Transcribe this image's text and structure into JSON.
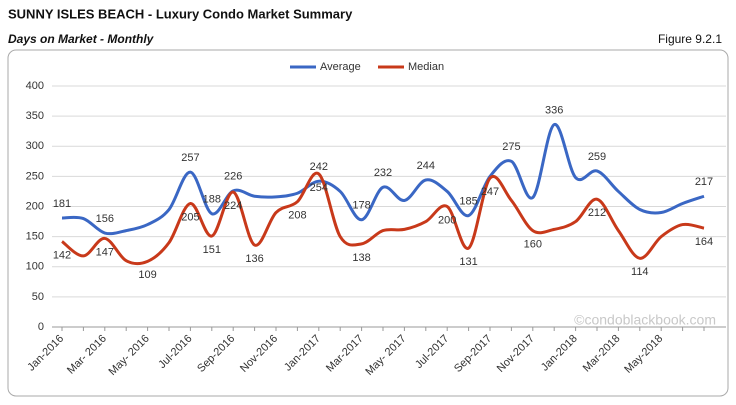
{
  "header": {
    "title": "SUNNY ISLES BEACH - Luxury Condo Market Summary",
    "subtitle": "Days on Market - Monthly",
    "figure": "Figure 9.2.1"
  },
  "watermark": "©condoblackbook.com",
  "chart_data": {
    "type": "line",
    "categories": [
      "Jan-2016",
      null,
      "Mar- 2016",
      null,
      "May- 2016",
      null,
      "Jul-2016",
      null,
      "Sep-2016",
      null,
      "Nov-2016",
      null,
      "Jan-2017",
      null,
      "Mar-2017",
      null,
      "May- 2017",
      null,
      "Jul-2017",
      null,
      "Sep-2017",
      null,
      "Nov-2017",
      null,
      "Jan-2018",
      null,
      "Mar-2018",
      null,
      "May-2018",
      null,
      null
    ],
    "series": [
      {
        "name": "Average",
        "color": "#3a67c4",
        "values": [
          181,
          180,
          156,
          160,
          170,
          195,
          257,
          188,
          226,
          217,
          216,
          222,
          242,
          225,
          178,
          232,
          210,
          244,
          225,
          185,
          250,
          275,
          215,
          336,
          248,
          259,
          225,
          195,
          190,
          205,
          217
        ],
        "value_labels": [
          "181",
          null,
          "156",
          null,
          null,
          null,
          "257",
          "188",
          "226",
          null,
          null,
          null,
          "242",
          null,
          "178",
          "232",
          null,
          "244",
          null,
          "185",
          null,
          "275",
          null,
          "336",
          null,
          "259",
          null,
          null,
          null,
          null,
          "217"
        ]
      },
      {
        "name": "Median",
        "color": "#c8391a",
        "values": [
          142,
          118,
          147,
          110,
          109,
          140,
          205,
          151,
          224,
          136,
          190,
          208,
          254,
          150,
          138,
          160,
          162,
          175,
          200,
          131,
          247,
          210,
          160,
          162,
          175,
          212,
          160,
          114,
          150,
          170,
          164
        ],
        "value_labels": [
          "142",
          null,
          "147",
          null,
          "109",
          null,
          "205",
          "151",
          "224",
          "136",
          null,
          "208",
          "254",
          null,
          "138",
          null,
          null,
          null,
          "200",
          "131",
          "247",
          null,
          "160",
          null,
          null,
          "212",
          null,
          "114",
          null,
          null,
          "164"
        ]
      }
    ],
    "ylim": [
      0,
      400
    ],
    "yticks": [
      0,
      50,
      100,
      150,
      200,
      250,
      300,
      350,
      400
    ],
    "grid": true,
    "legend": "top"
  }
}
